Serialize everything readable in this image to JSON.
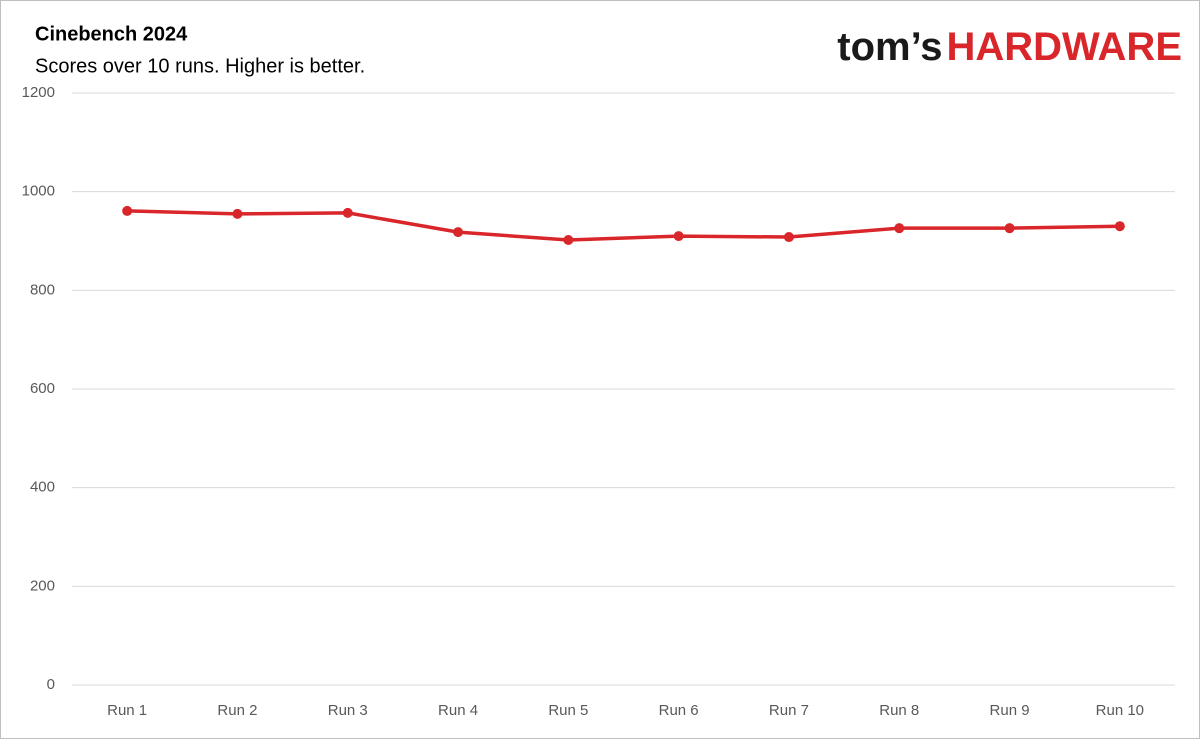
{
  "logo": {
    "brand": "tom’s",
    "name": "HARDWARE"
  },
  "chart_data": {
    "type": "line",
    "title": "Cinebench 2024",
    "subtitle": "Scores over 10 runs. Higher is better.",
    "categories": [
      "Run 1",
      "Run 2",
      "Run 3",
      "Run 4",
      "Run 5",
      "Run 6",
      "Run 7",
      "Run 8",
      "Run 9",
      "Run 10"
    ],
    "values": [
      961,
      955,
      957,
      918,
      902,
      910,
      908,
      926,
      926,
      930
    ],
    "color": "#d9262a",
    "ylim": [
      0,
      1200
    ],
    "yticks": [
      0,
      200,
      400,
      600,
      800,
      1000,
      1200
    ],
    "grid": true
  }
}
